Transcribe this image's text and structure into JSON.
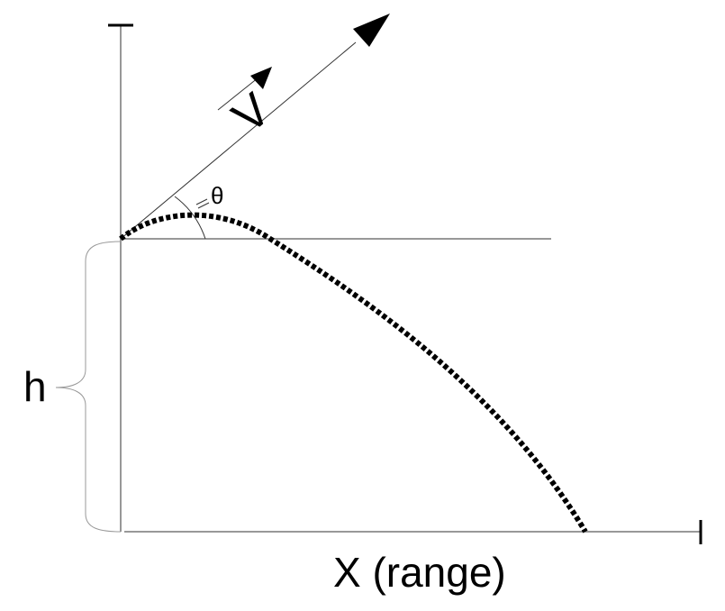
{
  "labels": {
    "velocity": "V",
    "angle": "θ",
    "height": "h",
    "range": "X (range)"
  },
  "colors": {
    "axis": "#777777",
    "trajectory": "#000000",
    "vector": "#333333"
  }
}
